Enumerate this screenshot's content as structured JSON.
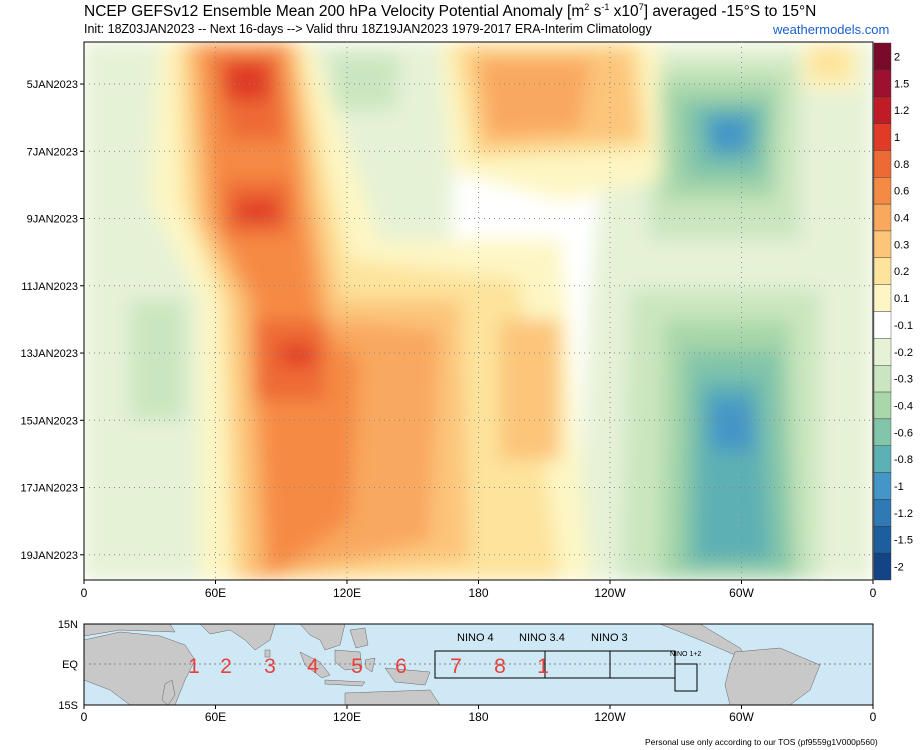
{
  "header": {
    "title_pre": "NCEP GEFSv12 Ensemble Mean 200 hPa Velocity Potential Anomaly [m",
    "title_sup1": "2",
    "title_mid": " s",
    "title_sup2": "-1",
    "title_mid2": " x10",
    "title_sup3": "7",
    "title_post": "] averaged -15°S to 15°N",
    "subtitle": "Init: 18Z03JAN2023 -- Next 16-days --> Valid thru 18Z19JAN2023 1979-2017 ERA-Interim Climatology",
    "site": "weathermodels.com"
  },
  "footer": "Personal use only according to our TOS (pf9559g1V000p560)",
  "chart_data": {
    "type": "heatmap",
    "title": "NCEP GEFSv12 Ensemble Mean 200 hPa Velocity Potential Anomaly",
    "x_axis": {
      "ticks": [
        "0",
        "60E",
        "120E",
        "180",
        "120W",
        "60W",
        "0"
      ],
      "range": [
        0,
        360
      ]
    },
    "y_axis": {
      "ticks": [
        "5JAN2023",
        "7JAN2023",
        "9JAN2023",
        "11JAN2023",
        "13JAN2023",
        "15JAN2023",
        "17JAN2023",
        "19JAN2023"
      ],
      "range_days": [
        3.75,
        19.75
      ]
    },
    "colorbar": {
      "labels": [
        "2",
        "1.5",
        "1.2",
        "1",
        "0.8",
        "0.6",
        "0.4",
        "0.3",
        "0.2",
        "0.1",
        "-0.1",
        "-0.2",
        "-0.3",
        "-0.4",
        "-0.6",
        "-0.8",
        "-1",
        "-1.2",
        "-1.5",
        "-2"
      ],
      "colors": [
        "#7a0a2a",
        "#9c1030",
        "#c01c26",
        "#df3b26",
        "#ee6a34",
        "#f58a45",
        "#f9a85e",
        "#fcc57a",
        "#fde39b",
        "#fdf6c4",
        "#ffffff",
        "#e6f2d6",
        "#cae6c0",
        "#a9d7aa",
        "#82c5aa",
        "#5db0b4",
        "#4495c8",
        "#2f79b5",
        "#1d5e9f",
        "#134486"
      ]
    },
    "features": [
      {
        "name": "positive anomaly band (Indian Ocean / Maritime Continent)",
        "lon_range": [
          60,
          170
        ],
        "value_max": 1.2
      },
      {
        "name": "positive anomaly (central Pacific)",
        "lon_range": [
          170,
          270
        ],
        "value_max": 0.8
      },
      {
        "name": "negative anomaly (South America)",
        "lon_range": [
          270,
          340
        ],
        "value_min": -1.2
      }
    ],
    "grid": true
  },
  "map": {
    "lat_labels": [
      "15N",
      "EQ",
      "15S"
    ],
    "lon_labels": [
      "0",
      "60E",
      "120E",
      "180",
      "120W",
      "60W",
      "0"
    ],
    "nino_labels": [
      "NINO 4",
      "NINO 3.4",
      "NINO 3",
      "NINO 1+2"
    ],
    "mjo_phases": [
      "1",
      "2",
      "3",
      "4",
      "5",
      "6",
      "7",
      "8",
      "1"
    ]
  }
}
